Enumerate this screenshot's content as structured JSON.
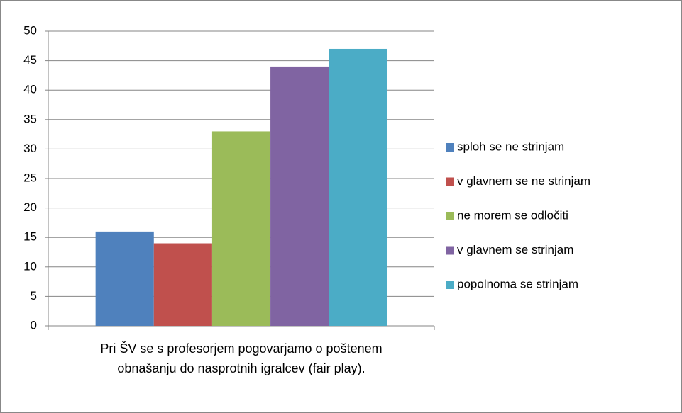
{
  "chart_data": {
    "type": "bar",
    "categories": [
      "Pri ŠV se s profesorjem pogovarjamo o poštenem obnašanju do nasprotnih igralcev (fair play)."
    ],
    "series": [
      {
        "name": "sploh se ne strinjam",
        "color": "#4f81bd",
        "values": [
          16
        ]
      },
      {
        "name": "v glavnem se ne strinjam",
        "color": "#c0504d",
        "values": [
          14
        ]
      },
      {
        "name": "ne morem se odločiti",
        "color": "#9bbb59",
        "values": [
          33
        ]
      },
      {
        "name": "v glavnem se strinjam",
        "color": "#8064a2",
        "values": [
          44
        ]
      },
      {
        "name": "popolnoma se strinjam",
        "color": "#4bacc6",
        "values": [
          47
        ]
      }
    ],
    "ylim": [
      0,
      50
    ],
    "yticks": [
      0,
      5,
      10,
      15,
      20,
      25,
      30,
      35,
      40,
      45,
      50
    ],
    "grid": true,
    "legend": "right"
  }
}
